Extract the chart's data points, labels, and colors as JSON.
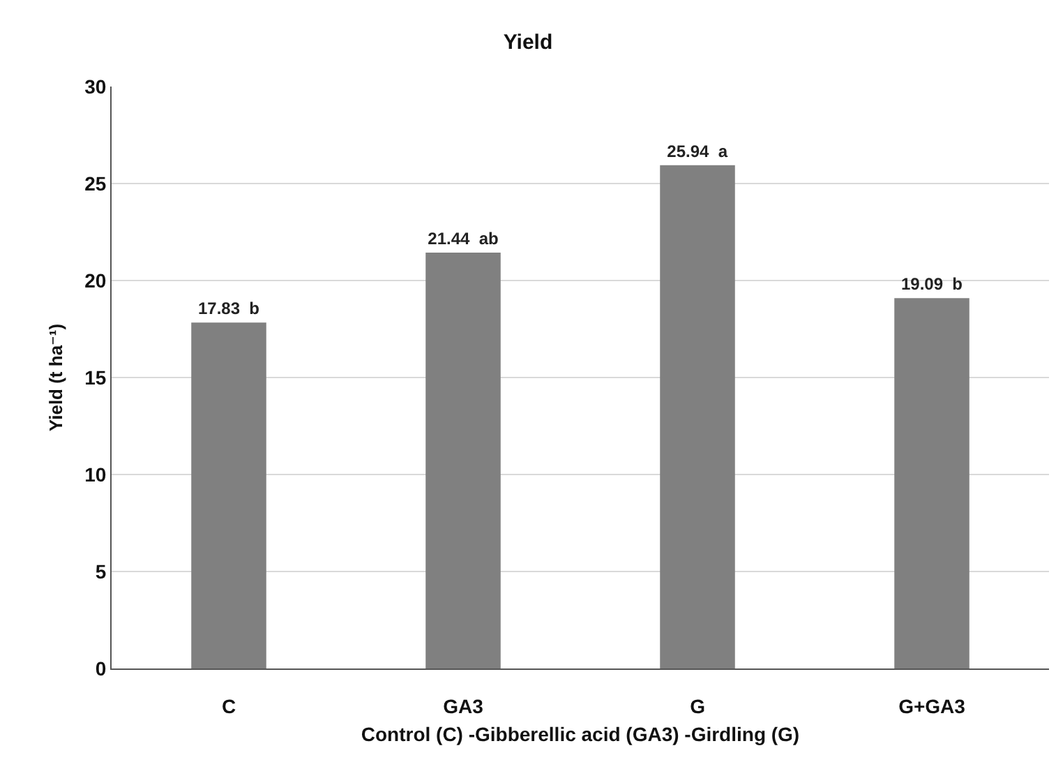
{
  "chart_data": {
    "type": "bar",
    "title": "Yield",
    "xlabel": "Control (C) -Gibberellic acid (GA3) -Girdling (G)",
    "ylabel": "Yield (t ha⁻¹)",
    "categories": [
      "C",
      "GA3",
      "G",
      "G+GA3"
    ],
    "values": [
      17.83,
      21.44,
      25.94,
      19.09
    ],
    "value_labels": [
      "17.83  b",
      "21.44  ab",
      "25.94  a",
      "19.09  b"
    ],
    "color": "#808080",
    "ylim": [
      0,
      30
    ],
    "yticks": [
      0,
      5,
      10,
      15,
      20,
      25,
      30
    ],
    "grid": "y"
  }
}
